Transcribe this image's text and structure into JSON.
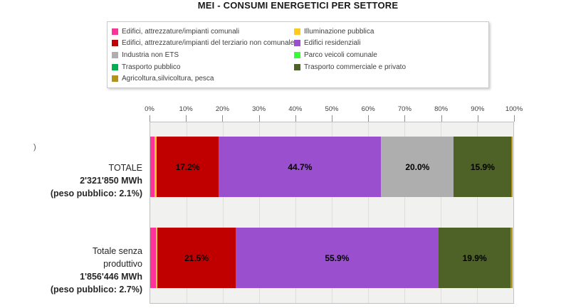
{
  "title": "MEI - CONSUMI ENERGETICI PER SETTORE",
  "stray_char": ")",
  "colors": {
    "comunali": "#FF3399",
    "illuminazione": "#FFC91E",
    "terziario": "#C00000",
    "residenziali": "#9A4FCE",
    "industria": "#AFAEAE",
    "parco": "#33FF33",
    "trasporto_pubblico": "#00B050",
    "trasporto_commerciale": "#4E6227",
    "agricoltura": "#B29419"
  },
  "legend": {
    "items": [
      {
        "label": "Edifici, attrezzature/impianti comunali",
        "color_key": "comunali"
      },
      {
        "label": "Illuminazione pubblica",
        "color_key": "illuminazione"
      },
      {
        "label": "Edifici, attrezzature/impianti del terziario non comunale",
        "color_key": "terziario"
      },
      {
        "label": "Edifici residenziali",
        "color_key": "residenziali"
      },
      {
        "label": "Industria non ETS",
        "color_key": "industria"
      },
      {
        "label": "Parco veicoli comunale",
        "color_key": "parco"
      },
      {
        "label": "Trasporto pubblico",
        "color_key": "trasporto_pubblico"
      },
      {
        "label": "Trasporto commerciale e privato",
        "color_key": "trasporto_commerciale"
      },
      {
        "label": "Agricoltura,silvicoltura, pesca",
        "color_key": "agricoltura"
      }
    ]
  },
  "chart_data": {
    "type": "bar",
    "orientation": "horizontal",
    "stacked": true,
    "title": "MEI - CONSUMI ENERGETICI PER SETTORE",
    "x_range": [
      0,
      100
    ],
    "x_ticks": [
      "0%",
      "10%",
      "20%",
      "30%",
      "40%",
      "50%",
      "60%",
      "70%",
      "80%",
      "90%",
      "100%"
    ],
    "grid": true,
    "legend_position": "top",
    "series_names": [
      "Edifici, attrezzature/impianti comunali",
      "Illuminazione pubblica",
      "Edifici, attrezzature/impianti del terziario non comunale",
      "Edifici residenziali",
      "Industria non ETS",
      "Parco veicoli comunale",
      "Trasporto pubblico",
      "Trasporto commerciale e privato",
      "Agricoltura,silvicoltura, pesca"
    ],
    "categories": [
      {
        "label_lines": [
          "TOTALE"
        ],
        "total_line": "2'321'850 MWh",
        "note_line": "(peso pubblico: 2.1%)",
        "segments": [
          {
            "series": "Edifici, attrezzature/impianti comunali",
            "color_key": "comunali",
            "value": 1.2,
            "label": ""
          },
          {
            "series": "Illuminazione pubblica",
            "color_key": "illuminazione",
            "value": 0.5,
            "label": ""
          },
          {
            "series": "Edifici, attrezzature/impianti del terziario non comunale",
            "color_key": "terziario",
            "value": 17.2,
            "label": "17.2%"
          },
          {
            "series": "Edifici residenziali",
            "color_key": "residenziali",
            "value": 44.7,
            "label": "44.7%"
          },
          {
            "series": "Industria non ETS",
            "color_key": "industria",
            "value": 20.0,
            "label": "20.0%"
          },
          {
            "series": "Trasporto commerciale e privato",
            "color_key": "trasporto_commerciale",
            "value": 15.9,
            "label": "15.9%"
          },
          {
            "series": "Agricoltura,silvicoltura, pesca",
            "color_key": "agricoltura",
            "value": 0.4,
            "label": ""
          }
        ]
      },
      {
        "label_lines": [
          "Totale senza",
          "produttivo"
        ],
        "total_line": "1'856'446 MWh",
        "note_line": "(peso pubblico: 2.7%)",
        "segments": [
          {
            "series": "Edifici, attrezzature/impianti comunali",
            "color_key": "comunali",
            "value": 1.5,
            "label": ""
          },
          {
            "series": "Illuminazione pubblica",
            "color_key": "illuminazione",
            "value": 0.5,
            "label": ""
          },
          {
            "series": "Edifici, attrezzature/impianti del terziario non comunale",
            "color_key": "terziario",
            "value": 21.5,
            "label": "21.5%"
          },
          {
            "series": "Edifici residenziali",
            "color_key": "residenziali",
            "value": 55.9,
            "label": "55.9%"
          },
          {
            "series": "Trasporto commerciale e privato",
            "color_key": "trasporto_commerciale",
            "value": 19.9,
            "label": "19.9%"
          },
          {
            "series": "Agricoltura,silvicoltura, pesca",
            "color_key": "agricoltura",
            "value": 0.6,
            "label": ""
          }
        ]
      }
    ]
  }
}
